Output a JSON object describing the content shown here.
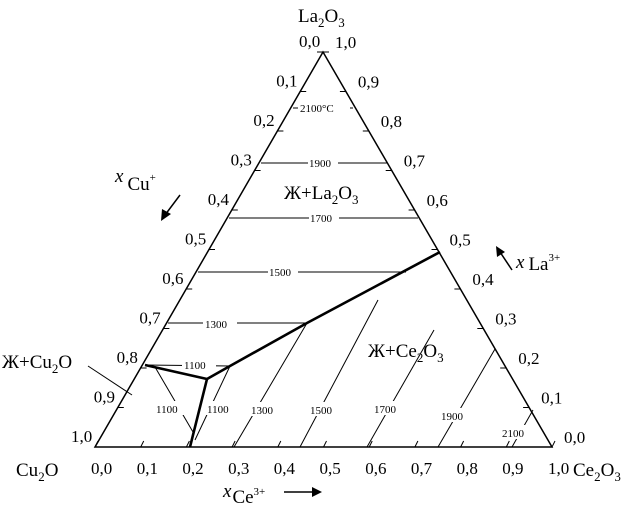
{
  "vertices": {
    "top": {
      "base": "La",
      "sub": "2",
      "base2": "O",
      "sub2": "3"
    },
    "left": {
      "base": "Cu",
      "sub": "2",
      "base2": "O",
      "sub2": ""
    },
    "right": {
      "base": "Ce",
      "sub": "2",
      "base2": "O",
      "sub2": "3"
    }
  },
  "axes": {
    "left_ticks": [
      "0,0",
      "0,1",
      "0,2",
      "0,3",
      "0,4",
      "0,5",
      "0,6",
      "0,7",
      "0,8",
      "0,9",
      "1,0"
    ],
    "right_ticks": [
      "1,0",
      "0,9",
      "0,8",
      "0,7",
      "0,6",
      "0,5",
      "0,4",
      "0,3",
      "0,2",
      "0,1",
      "0,0"
    ],
    "bottom_ticks": [
      "0,0",
      "0,1",
      "0,2",
      "0,3",
      "0,4",
      "0,5",
      "0,6",
      "0,7",
      "0,8",
      "0,9",
      "1,0"
    ],
    "left_axis_label": {
      "x": "x",
      "sub": "Cu",
      "sup": "+"
    },
    "right_axis_label": {
      "x": "x",
      "sub": "La",
      "sup": "3+"
    },
    "bottom_axis_label": {
      "x": "x",
      "sub": "Ce",
      "sup": "3+"
    }
  },
  "regions": {
    "la2o3": {
      "text": "Ж+La",
      "sub": "2",
      "text2": "O",
      "sub2": "3"
    },
    "ce2o3": {
      "text": "Ж+Ce",
      "sub": "2",
      "text2": "O",
      "sub2": "3"
    },
    "cu2o": {
      "text": "Ж+Cu",
      "sub": "2",
      "text2": "O",
      "sub2": ""
    }
  },
  "isotherm_labels": {
    "t2100c": "2100°C",
    "t1900": "1900",
    "t1700": "1700",
    "t1500": "1500",
    "t1300": "1300",
    "t1100_top": "1100",
    "t1100_left": "1100",
    "t1100_right": "1100",
    "r1300": "1300",
    "r1500": "1500",
    "r1700": "1700",
    "r1900": "1900",
    "r2100": "2100"
  }
}
